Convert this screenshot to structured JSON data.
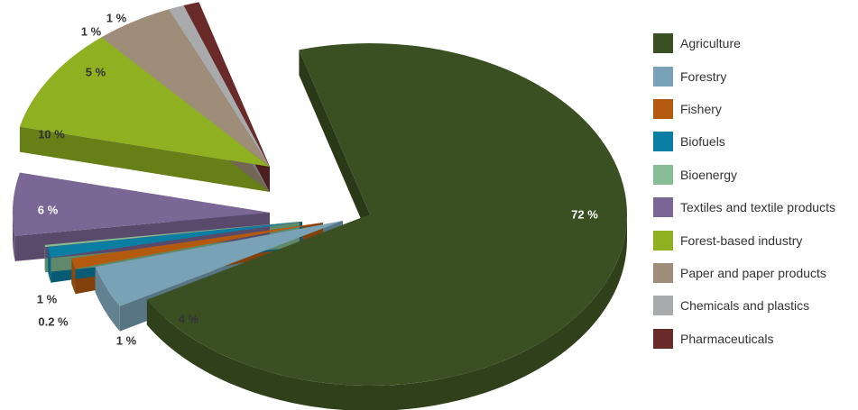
{
  "chart_data": {
    "type": "pie",
    "title": "",
    "categories": [
      "Agriculture",
      "Forestry",
      "Fishery",
      "Biofuels",
      "Bioenergy",
      "Textiles and textile products",
      "Forest-based industry",
      "Paper and paper products",
      "Chemicals and plastics",
      "Pharmaceuticals"
    ],
    "values": [
      72,
      4,
      1,
      1,
      0.2,
      6,
      10,
      5,
      1,
      1
    ],
    "data_labels": [
      "72 %",
      "4 %",
      "1 %",
      "1 %",
      "0.2 %",
      "6 %",
      "10 %",
      "5 %",
      "1 %",
      "1 %"
    ],
    "colors": [
      "#3b5022",
      "#7aa2b6",
      "#b35a0e",
      "#0b7fa3",
      "#86bd94",
      "#7b6796",
      "#8fb020",
      "#9e8d78",
      "#a9aaac",
      "#6a2a2a"
    ],
    "legend_position": "right",
    "style": "3d-exploded"
  }
}
